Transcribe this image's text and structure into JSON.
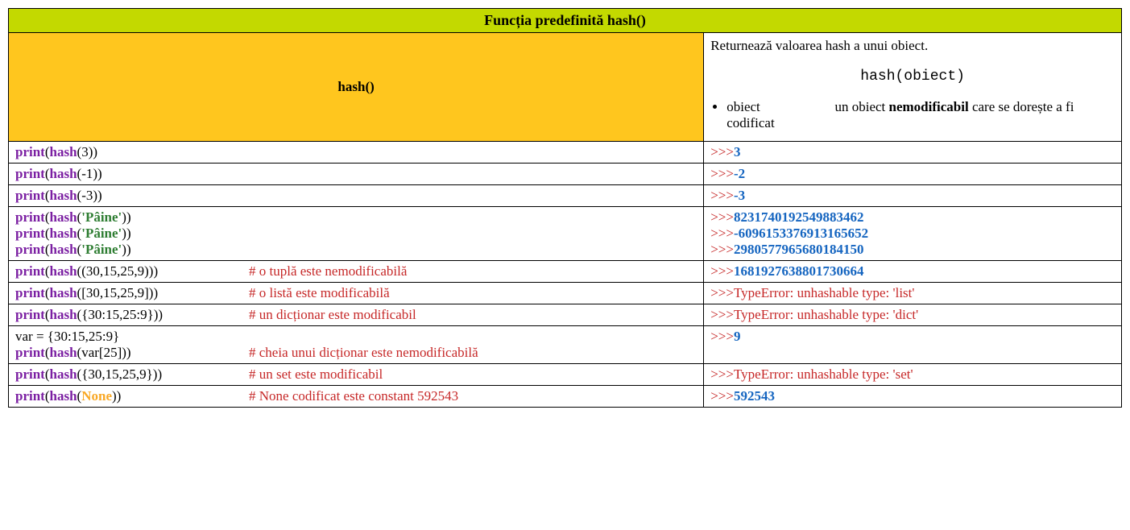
{
  "header": {
    "title": "Funcția predefinită hash()"
  },
  "side": {
    "label": "hash()"
  },
  "description": {
    "intro": "Returnează valoarea hash a unui obiect.",
    "signature": "hash(obiect)",
    "param_name": "obiect",
    "param_text_before": "un obiect ",
    "param_text_bold": "nemodificabil",
    "param_text_after": " care se dorește a fi codificat"
  },
  "rows": [
    {
      "lines": [
        {
          "segments": [
            {
              "t": "print",
              "c": "kw"
            },
            {
              "t": "(",
              "c": "plain"
            },
            {
              "t": "hash",
              "c": "kw"
            },
            {
              "t": "(3))",
              "c": "plain"
            }
          ]
        }
      ],
      "out": [
        {
          "prompt": ">>>",
          "val": "3",
          "cls": "outnum"
        }
      ]
    },
    {
      "lines": [
        {
          "segments": [
            {
              "t": "print",
              "c": "kw"
            },
            {
              "t": "(",
              "c": "plain"
            },
            {
              "t": "hash",
              "c": "kw"
            },
            {
              "t": "(-1))",
              "c": "plain"
            }
          ]
        }
      ],
      "out": [
        {
          "prompt": ">>>",
          "val": "-2",
          "cls": "outnum"
        }
      ]
    },
    {
      "lines": [
        {
          "segments": [
            {
              "t": "print",
              "c": "kw"
            },
            {
              "t": "(",
              "c": "plain"
            },
            {
              "t": "hash",
              "c": "kw"
            },
            {
              "t": "(-3))",
              "c": "plain"
            }
          ]
        }
      ],
      "out": [
        {
          "prompt": ">>>",
          "val": "-3",
          "cls": "outnum"
        }
      ]
    },
    {
      "lines": [
        {
          "segments": [
            {
              "t": "print",
              "c": "kw"
            },
            {
              "t": "(",
              "c": "plain"
            },
            {
              "t": "hash",
              "c": "kw"
            },
            {
              "t": "(",
              "c": "plain"
            },
            {
              "t": "'Pâine'",
              "c": "str"
            },
            {
              "t": "))",
              "c": "plain"
            }
          ]
        },
        {
          "segments": [
            {
              "t": "print",
              "c": "kw"
            },
            {
              "t": "(",
              "c": "plain"
            },
            {
              "t": "hash",
              "c": "kw"
            },
            {
              "t": "(",
              "c": "plain"
            },
            {
              "t": "'Pâine'",
              "c": "str"
            },
            {
              "t": "))",
              "c": "plain"
            }
          ]
        },
        {
          "segments": [
            {
              "t": "print",
              "c": "kw"
            },
            {
              "t": "(",
              "c": "plain"
            },
            {
              "t": "hash",
              "c": "kw"
            },
            {
              "t": "(",
              "c": "plain"
            },
            {
              "t": "'Pâine'",
              "c": "str"
            },
            {
              "t": "))",
              "c": "plain"
            }
          ]
        }
      ],
      "out": [
        {
          "prompt": ">>>",
          "val": "8231740192549883462",
          "cls": "outnum"
        },
        {
          "prompt": ">>>",
          "val": "-6096153376913165652",
          "cls": "outnum"
        },
        {
          "prompt": ">>>",
          "val": "2980577965680184150",
          "cls": "outnum"
        }
      ]
    },
    {
      "lines": [
        {
          "segments": [
            {
              "t": "print",
              "c": "kw"
            },
            {
              "t": "(",
              "c": "plain"
            },
            {
              "t": "hash",
              "c": "kw"
            },
            {
              "t": "((30,15,25,9)))",
              "c": "plain"
            }
          ],
          "comment": "# o tuplă este nemodificabilă",
          "pad": 290
        }
      ],
      "out": [
        {
          "prompt": ">>>",
          "val": "1681927638801730664",
          "cls": "outnum"
        }
      ]
    },
    {
      "lines": [
        {
          "segments": [
            {
              "t": "print",
              "c": "kw"
            },
            {
              "t": "(",
              "c": "plain"
            },
            {
              "t": "hash",
              "c": "kw"
            },
            {
              "t": "([30,15,25,9]))",
              "c": "plain"
            }
          ],
          "comment": "# o listă este modificabilă",
          "pad": 290
        }
      ],
      "out": [
        {
          "prompt": ">>>",
          "val": "TypeError: unhashable type: 'list'",
          "cls": "outerr"
        }
      ]
    },
    {
      "lines": [
        {
          "segments": [
            {
              "t": "print",
              "c": "kw"
            },
            {
              "t": "(",
              "c": "plain"
            },
            {
              "t": "hash",
              "c": "kw"
            },
            {
              "t": "({30:15,25:9}))",
              "c": "plain"
            }
          ],
          "comment": "# un dicționar este modificabil",
          "pad": 290
        }
      ],
      "out": [
        {
          "prompt": ">>>",
          "val": "TypeError: unhashable type: 'dict'",
          "cls": "outerr"
        }
      ]
    },
    {
      "lines": [
        {
          "segments": [
            {
              "t": "var = {30:15,25:9}",
              "c": "plain"
            }
          ]
        },
        {
          "segments": [
            {
              "t": "print",
              "c": "kw"
            },
            {
              "t": "(",
              "c": "plain"
            },
            {
              "t": "hash",
              "c": "kw"
            },
            {
              "t": "(var[25]))",
              "c": "plain"
            }
          ],
          "comment": "# cheia unui dicționar este nemodificabilă",
          "pad": 290
        }
      ],
      "out": [
        {
          "prompt": ">>>",
          "val": "9",
          "cls": "outnum"
        }
      ]
    },
    {
      "lines": [
        {
          "segments": [
            {
              "t": "print",
              "c": "kw"
            },
            {
              "t": "(",
              "c": "plain"
            },
            {
              "t": "hash",
              "c": "kw"
            },
            {
              "t": "({30,15,25,9}))",
              "c": "plain"
            }
          ],
          "comment": "# un set este modificabil",
          "pad": 290
        }
      ],
      "out": [
        {
          "prompt": ">>>",
          "val": "TypeError: unhashable type: 'set'",
          "cls": "outerr"
        }
      ]
    },
    {
      "lines": [
        {
          "segments": [
            {
              "t": "print",
              "c": "kw"
            },
            {
              "t": "(",
              "c": "plain"
            },
            {
              "t": "hash",
              "c": "kw"
            },
            {
              "t": "(",
              "c": "plain"
            },
            {
              "t": "None",
              "c": "none"
            },
            {
              "t": "))",
              "c": "plain"
            }
          ],
          "comment": "# None codificat este constant 592543",
          "pad": 290
        }
      ],
      "out": [
        {
          "prompt": ">>>",
          "val": "592543",
          "cls": "outnum"
        }
      ]
    }
  ],
  "layout": {
    "code_col_width": 810,
    "out_col_width": 480
  },
  "colors": {
    "header_bg": "#c3d900",
    "side_bg": "#ffc61e",
    "keyword": "#7b1fa2",
    "string": "#2e7d32",
    "none": "#f9a825",
    "error": "#c62828",
    "number": "#1565c0",
    "border": "#000000"
  }
}
